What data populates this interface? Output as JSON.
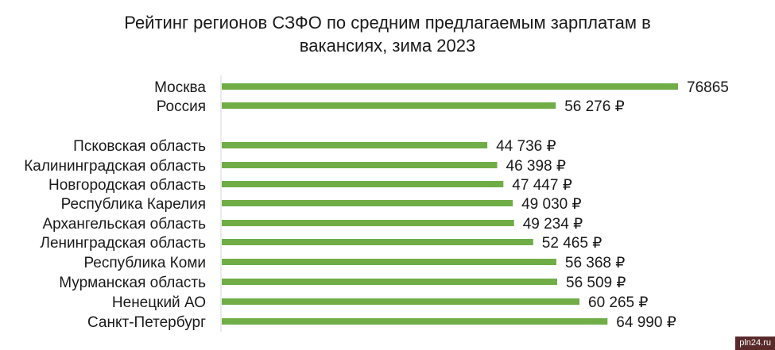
{
  "chart_data": {
    "type": "bar",
    "orientation": "horizontal",
    "title_lines": [
      "Рейтинг регионов СЗФО по средним предлагаемым зарплатам в",
      "вакансиях, зима 2023"
    ],
    "categories": [
      "Москва",
      "Россия",
      "Псковская область",
      "Калининградская область",
      "Новгородская область",
      "Республика Карелия",
      "Архангельская область",
      "Ленинградская область",
      "Республика Коми",
      "Мурманская область",
      "Ненецкий АО",
      "Санкт-Петербург"
    ],
    "values": [
      76865,
      56276,
      44736,
      46398,
      47447,
      49030,
      49234,
      52465,
      56368,
      56509,
      60265,
      64990
    ],
    "value_labels": [
      "76865",
      "56 276 ₽",
      "44 736 ₽",
      "46 398 ₽",
      "47 447 ₽",
      "49 030 ₽",
      "49 234 ₽",
      "52 465 ₽",
      "56 368 ₽",
      "56 509 ₽",
      "60 265 ₽",
      "64 990 ₽"
    ],
    "xlim": [
      0,
      76865
    ],
    "grid": false,
    "legend": "none",
    "bar_color": "#70ad47",
    "axis_color": "#d9d9d9"
  },
  "watermark": "pln24.ru"
}
